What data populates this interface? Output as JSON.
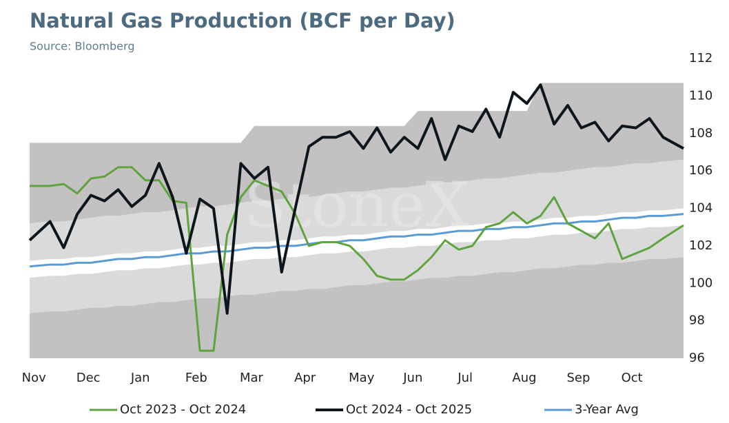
{
  "chart_data": {
    "type": "line",
    "title": "Natural Gas Production (BCF per Day)",
    "subtitle": "Source: Bloomberg",
    "watermark": "StoneX",
    "categories": [
      "Nov",
      null,
      null,
      null,
      "Dec",
      null,
      null,
      null,
      "Jan",
      null,
      null,
      null,
      "Feb",
      null,
      null,
      null,
      "Mar",
      null,
      null,
      null,
      "Apr",
      null,
      null,
      null,
      "May",
      null,
      null,
      null,
      "Jun",
      null,
      null,
      null,
      "Jul",
      null,
      null,
      null,
      "Aug",
      null,
      null,
      null,
      "Sep",
      null,
      null,
      null,
      "Oct",
      null,
      null,
      null
    ],
    "ylim": [
      96,
      112
    ],
    "yticks": [
      96,
      98,
      100,
      102,
      104,
      106,
      108,
      110,
      112
    ],
    "bands": {
      "colors": {
        "outer": "#c3c1c1",
        "inner": "#dadada"
      },
      "max": [
        107.5,
        107.5,
        107.5,
        107.5,
        107.5,
        107.5,
        107.5,
        107.5,
        107.5,
        107.5,
        107.5,
        107.5,
        107.5,
        107.5,
        107.5,
        107.5,
        108.4,
        108.4,
        108.4,
        108.4,
        108.4,
        108.4,
        108.4,
        108.4,
        108.4,
        108.4,
        108.4,
        108.4,
        109.2,
        109.2,
        109.2,
        109.2,
        109.2,
        109.2,
        109.2,
        109.2,
        109.2,
        110.7,
        110.7,
        110.7,
        110.7,
        110.7,
        110.7,
        110.7,
        110.7,
        110.7,
        110.7,
        110.7
      ],
      "upper": [
        103.2,
        103.3,
        103.3,
        103.4,
        103.5,
        103.6,
        103.6,
        103.7,
        103.8,
        103.8,
        103.9,
        104.0,
        104.1,
        104.1,
        104.2,
        104.3,
        104.4,
        104.4,
        104.5,
        104.6,
        104.6,
        104.7,
        104.8,
        104.9,
        104.9,
        105.0,
        105.1,
        105.1,
        105.2,
        105.3,
        105.4,
        105.4,
        105.5,
        105.6,
        105.6,
        105.7,
        105.8,
        105.9,
        105.9,
        106.0,
        106.1,
        106.2,
        106.2,
        106.3,
        106.4,
        106.4,
        106.5,
        106.6
      ],
      "avg_upper": [
        101.2,
        101.3,
        101.3,
        101.4,
        101.4,
        101.5,
        101.6,
        101.6,
        101.7,
        101.7,
        101.8,
        101.9,
        101.9,
        102.0,
        102.0,
        102.1,
        102.2,
        102.2,
        102.3,
        102.3,
        102.4,
        102.5,
        102.5,
        102.6,
        102.6,
        102.7,
        102.8,
        102.8,
        102.9,
        102.9,
        103.0,
        103.1,
        103.1,
        103.2,
        103.2,
        103.3,
        103.3,
        103.4,
        103.5,
        103.5,
        103.6,
        103.6,
        103.7,
        103.8,
        103.8,
        103.9,
        103.9,
        104.0
      ],
      "avg_lower": [
        100.3,
        100.4,
        100.4,
        100.5,
        100.5,
        100.6,
        100.7,
        100.7,
        100.8,
        100.8,
        100.9,
        101.0,
        101.0,
        101.1,
        101.1,
        101.2,
        101.3,
        101.3,
        101.4,
        101.4,
        101.5,
        101.6,
        101.6,
        101.7,
        101.7,
        101.8,
        101.9,
        101.9,
        102.0,
        102.0,
        102.1,
        102.2,
        102.2,
        102.3,
        102.3,
        102.4,
        102.4,
        102.5,
        102.6,
        102.6,
        102.7,
        102.7,
        102.8,
        102.9,
        102.9,
        103.0,
        103.0,
        103.1
      ],
      "lower": [
        98.4,
        98.5,
        98.5,
        98.6,
        98.7,
        98.7,
        98.8,
        98.8,
        98.9,
        99.0,
        99.0,
        99.1,
        99.2,
        99.2,
        99.3,
        99.4,
        99.4,
        99.5,
        99.6,
        99.6,
        99.7,
        99.7,
        99.8,
        99.9,
        99.9,
        100.0,
        100.1,
        100.1,
        100.2,
        100.3,
        100.3,
        100.4,
        100.4,
        100.5,
        100.6,
        100.6,
        100.7,
        100.8,
        100.8,
        100.9,
        101.0,
        101.0,
        101.1,
        101.1,
        101.2,
        101.3,
        101.3,
        101.4
      ]
    },
    "series": [
      {
        "name": "Oct 2023 - Oct 2024",
        "color": "#5fa33e",
        "width": 3,
        "values": [
          105.2,
          105.2,
          105.3,
          104.8,
          105.6,
          105.7,
          106.2,
          106.2,
          105.5,
          105.5,
          104.4,
          104.3,
          96.4,
          96.4,
          102.6,
          104.6,
          105.5,
          105.2,
          104.9,
          103.7,
          102.0,
          102.2,
          102.2,
          102.0,
          101.3,
          100.4,
          100.2,
          100.2,
          100.7,
          101.4,
          102.3,
          101.8,
          102.0,
          103.0,
          103.2,
          103.8,
          103.2,
          103.6,
          104.6,
          103.2,
          102.8,
          102.4,
          103.2,
          101.3,
          101.6,
          101.9,
          102.4,
          103.1
        ]
      },
      {
        "name": "Oct 2024 - Oct 2025",
        "color": "#0d161c",
        "width": 4,
        "values": [
          102.3,
          103.3,
          101.9,
          103.7,
          104.7,
          104.4,
          105.0,
          104.1,
          104.7,
          106.4,
          104.6,
          101.6,
          104.5,
          104.0,
          98.4,
          106.4,
          105.6,
          106.2,
          100.6,
          104.0,
          107.3,
          107.8,
          107.8,
          108.1,
          107.2,
          108.3,
          107.0,
          107.8,
          107.2,
          108.8,
          106.6,
          108.4,
          108.1,
          109.3,
          107.8,
          110.2,
          109.6,
          110.6,
          108.5,
          109.5,
          108.3,
          108.6,
          107.6,
          108.4,
          108.3,
          108.8,
          107.8,
          107.2
        ]
      },
      {
        "name": "3-Year Avg",
        "color": "#5b9bd5",
        "width": 3,
        "values": [
          100.9,
          101.0,
          101.0,
          101.1,
          101.1,
          101.2,
          101.3,
          101.3,
          101.4,
          101.4,
          101.5,
          101.6,
          101.6,
          101.7,
          101.7,
          101.8,
          101.9,
          101.9,
          102.0,
          102.0,
          102.1,
          102.2,
          102.2,
          102.3,
          102.3,
          102.4,
          102.5,
          102.5,
          102.6,
          102.6,
          102.7,
          102.8,
          102.8,
          102.9,
          102.9,
          103.0,
          103.0,
          103.1,
          103.2,
          103.2,
          103.3,
          103.3,
          103.4,
          103.5,
          103.5,
          103.6,
          103.6,
          103.7
        ]
      }
    ]
  }
}
